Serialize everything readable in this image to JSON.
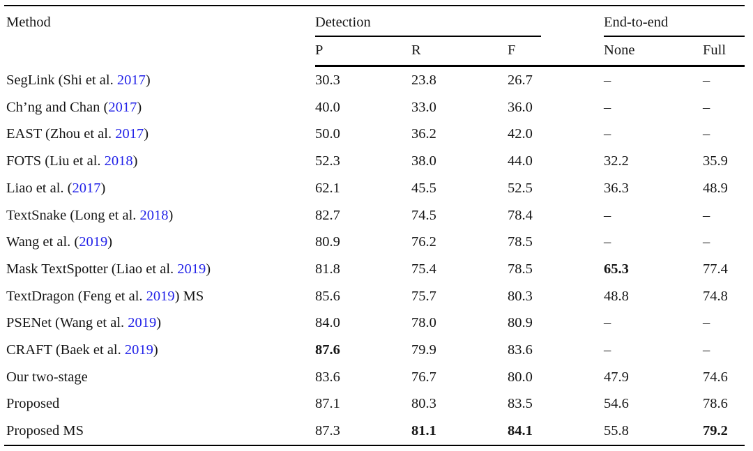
{
  "accent_color": "#2323e8",
  "table": {
    "method_header": "Method",
    "groups": [
      {
        "label": "Detection",
        "cols": [
          "P",
          "R",
          "F"
        ]
      },
      {
        "label": "End-to-end",
        "cols": [
          "None",
          "Full"
        ]
      }
    ],
    "rows": [
      {
        "method": {
          "pre": "SegLink (Shi et al. ",
          "year": "2017",
          "post": ")"
        },
        "cells": [
          {
            "v": "30.3",
            "b": false
          },
          {
            "v": "23.8",
            "b": false
          },
          {
            "v": "26.7",
            "b": false
          },
          {
            "v": "–",
            "b": false
          },
          {
            "v": "–",
            "b": false
          }
        ]
      },
      {
        "method": {
          "pre": "Ch’ng and Chan (",
          "year": "2017",
          "post": ")"
        },
        "cells": [
          {
            "v": "40.0",
            "b": false
          },
          {
            "v": "33.0",
            "b": false
          },
          {
            "v": "36.0",
            "b": false
          },
          {
            "v": "–",
            "b": false
          },
          {
            "v": "–",
            "b": false
          }
        ]
      },
      {
        "method": {
          "pre": "EAST (Zhou et al. ",
          "year": "2017",
          "post": ")"
        },
        "cells": [
          {
            "v": "50.0",
            "b": false
          },
          {
            "v": "36.2",
            "b": false
          },
          {
            "v": "42.0",
            "b": false
          },
          {
            "v": "–",
            "b": false
          },
          {
            "v": "–",
            "b": false
          }
        ]
      },
      {
        "method": {
          "pre": "FOTS (Liu et al. ",
          "year": "2018",
          "post": ")"
        },
        "cells": [
          {
            "v": "52.3",
            "b": false
          },
          {
            "v": "38.0",
            "b": false
          },
          {
            "v": "44.0",
            "b": false
          },
          {
            "v": "32.2",
            "b": false
          },
          {
            "v": "35.9",
            "b": false
          }
        ]
      },
      {
        "method": {
          "pre": "Liao et al. (",
          "year": "2017",
          "post": ")"
        },
        "cells": [
          {
            "v": "62.1",
            "b": false
          },
          {
            "v": "45.5",
            "b": false
          },
          {
            "v": "52.5",
            "b": false
          },
          {
            "v": "36.3",
            "b": false
          },
          {
            "v": "48.9",
            "b": false
          }
        ]
      },
      {
        "method": {
          "pre": "TextSnake (Long et al. ",
          "year": "2018",
          "post": ")"
        },
        "cells": [
          {
            "v": "82.7",
            "b": false
          },
          {
            "v": "74.5",
            "b": false
          },
          {
            "v": "78.4",
            "b": false
          },
          {
            "v": "–",
            "b": false
          },
          {
            "v": "–",
            "b": false
          }
        ]
      },
      {
        "method": {
          "pre": "Wang et al. (",
          "year": "2019",
          "post": ")"
        },
        "cells": [
          {
            "v": "80.9",
            "b": false
          },
          {
            "v": "76.2",
            "b": false
          },
          {
            "v": "78.5",
            "b": false
          },
          {
            "v": "–",
            "b": false
          },
          {
            "v": "–",
            "b": false
          }
        ]
      },
      {
        "method": {
          "pre": "Mask TextSpotter (Liao et al. ",
          "year": "2019",
          "post": ")"
        },
        "cells": [
          {
            "v": "81.8",
            "b": false
          },
          {
            "v": "75.4",
            "b": false
          },
          {
            "v": "78.5",
            "b": false
          },
          {
            "v": "65.3",
            "b": true
          },
          {
            "v": "77.4",
            "b": false
          }
        ]
      },
      {
        "method": {
          "pre": "TextDragon (Feng et al. ",
          "year": "2019",
          "post": ") MS"
        },
        "cells": [
          {
            "v": "85.6",
            "b": false
          },
          {
            "v": "75.7",
            "b": false
          },
          {
            "v": "80.3",
            "b": false
          },
          {
            "v": "48.8",
            "b": false
          },
          {
            "v": "74.8",
            "b": false
          }
        ]
      },
      {
        "method": {
          "pre": "PSENet (Wang et al. ",
          "year": "2019",
          "post": ")"
        },
        "cells": [
          {
            "v": "84.0",
            "b": false
          },
          {
            "v": "78.0",
            "b": false
          },
          {
            "v": "80.9",
            "b": false
          },
          {
            "v": "–",
            "b": false
          },
          {
            "v": "–",
            "b": false
          }
        ]
      },
      {
        "method": {
          "pre": "CRAFT (Baek et al. ",
          "year": "2019",
          "post": ")"
        },
        "cells": [
          {
            "v": "87.6",
            "b": true
          },
          {
            "v": "79.9",
            "b": false
          },
          {
            "v": "83.6",
            "b": false
          },
          {
            "v": "–",
            "b": false
          },
          {
            "v": "–",
            "b": false
          }
        ]
      },
      {
        "method": {
          "pre": "Our two-stage",
          "year": "",
          "post": ""
        },
        "cells": [
          {
            "v": "83.6",
            "b": false
          },
          {
            "v": "76.7",
            "b": false
          },
          {
            "v": "80.0",
            "b": false
          },
          {
            "v": "47.9",
            "b": false
          },
          {
            "v": "74.6",
            "b": false
          }
        ]
      },
      {
        "method": {
          "pre": "Proposed",
          "year": "",
          "post": ""
        },
        "cells": [
          {
            "v": "87.1",
            "b": false
          },
          {
            "v": "80.3",
            "b": false
          },
          {
            "v": "83.5",
            "b": false
          },
          {
            "v": "54.6",
            "b": false
          },
          {
            "v": "78.6",
            "b": false
          }
        ]
      },
      {
        "method": {
          "pre": "Proposed MS",
          "year": "",
          "post": ""
        },
        "cells": [
          {
            "v": "87.3",
            "b": false
          },
          {
            "v": "81.1",
            "b": true
          },
          {
            "v": "84.1",
            "b": true
          },
          {
            "v": "55.8",
            "b": false
          },
          {
            "v": "79.2",
            "b": true
          }
        ]
      }
    ]
  }
}
